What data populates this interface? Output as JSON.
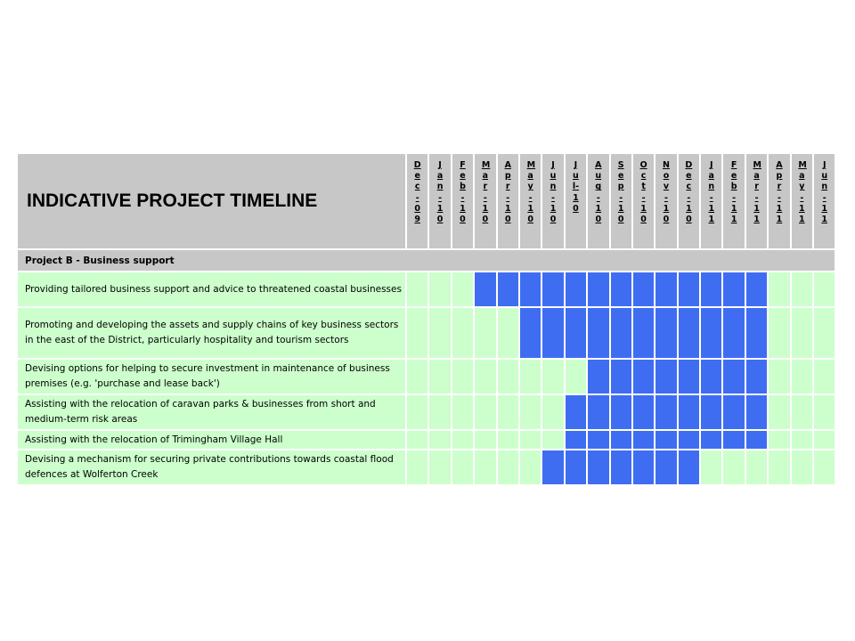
{
  "title": "INDICATIVE PROJECT TIMELINE",
  "months": [
    "Dec-09",
    "Jan-10",
    "Feb-10",
    "Mar-10",
    "Apr-10",
    "May-10",
    "Jun-10",
    "Jul-10",
    "Aug-10",
    "Sep-10",
    "Oct-10",
    "Nov-10",
    "Dec-10",
    "Jan-11",
    "Feb-11",
    "Mar-11",
    "Apr-11",
    "May-11",
    "Jun-11"
  ],
  "section": "Project B - Business support",
  "colors": {
    "header_bg": "#c7c7c7",
    "row_bg": "#ccffcc",
    "active": "#3f6df2"
  },
  "tasks": [
    {
      "label": "Providing tailored business support and advice to threatened coastal businesses",
      "start_month": "Mar-10",
      "end_month": "Mar-11"
    },
    {
      "label": "Promoting and developing the assets and supply chains of key business sectors in the east of the District, particularly hospitality and tourism sectors",
      "start_month": "May-10",
      "end_month": "Mar-11"
    },
    {
      "label": "Devising options for helping to secure investment in maintenance of business premises (e.g. 'purchase and lease back')",
      "start_month": "Aug-10",
      "end_month": "Mar-11"
    },
    {
      "label": "Assisting with the relocation of caravan parks & businesses from short and medium-term risk areas",
      "start_month": "Jul-10",
      "end_month": "Mar-11"
    },
    {
      "label": "Assisting with the relocation of Trimingham Village Hall",
      "start_month": "Jul-10",
      "end_month": "Mar-11"
    },
    {
      "label": "Devising a mechanism for securing private contributions towards coastal flood defences at Wolferton Creek",
      "start_month": "Jun-10",
      "end_month": "Dec-10"
    }
  ]
}
